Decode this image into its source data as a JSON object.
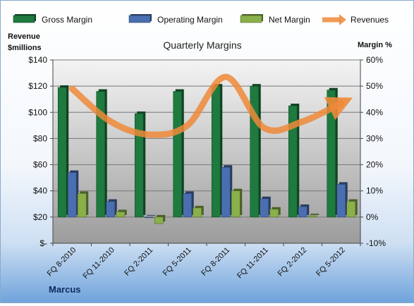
{
  "chart_data": {
    "type": "bar",
    "title": "Quarterly Margins",
    "y_left_label": [
      "Revenue",
      "$millions"
    ],
    "y_right_label": "Margin %",
    "categories": [
      "FQ 8-2010",
      "FQ 11-2010",
      "FQ 2-2011",
      "FQ 5-2011",
      "FQ 8-2011",
      "FQ 11-2011",
      "FQ 2-2012",
      "FQ 5-2012"
    ],
    "y_left_ticks": [
      "$-",
      "$20",
      "$40",
      "$60",
      "$80",
      "$100",
      "$120",
      "$140"
    ],
    "y_left_range": [
      0,
      140
    ],
    "y_right_ticks": [
      "-10%",
      "0%",
      "10%",
      "20%",
      "30%",
      "40%",
      "50%",
      "60%"
    ],
    "y_right_range": [
      -10,
      60
    ],
    "grid": true,
    "legend_position": "top",
    "series": [
      {
        "name": "Gross Margin",
        "axis": "right",
        "kind": "bar",
        "color": "#1e7a3f",
        "values": [
          49.5,
          48.0,
          39.5,
          48.0,
          50.0,
          50.0,
          42.5,
          48.5
        ]
      },
      {
        "name": "Operating Margin",
        "axis": "right",
        "kind": "bar",
        "color": "#4a6fb0",
        "values": [
          17.0,
          6.0,
          0.0,
          9.0,
          19.0,
          7.0,
          4.0,
          12.5
        ]
      },
      {
        "name": "Net Margin",
        "axis": "right",
        "kind": "bar",
        "color": "#8ab04a",
        "values": [
          9.0,
          2.0,
          -2.5,
          3.5,
          10.0,
          3.0,
          0.5,
          6.0
        ]
      },
      {
        "name": "Revenues",
        "axis": "left",
        "kind": "line",
        "color": "#ef8a3a",
        "values": [
          118,
          93,
          83,
          90,
          127,
          88,
          93,
          107
        ]
      }
    ]
  },
  "footer": {
    "source": "Marcus"
  }
}
